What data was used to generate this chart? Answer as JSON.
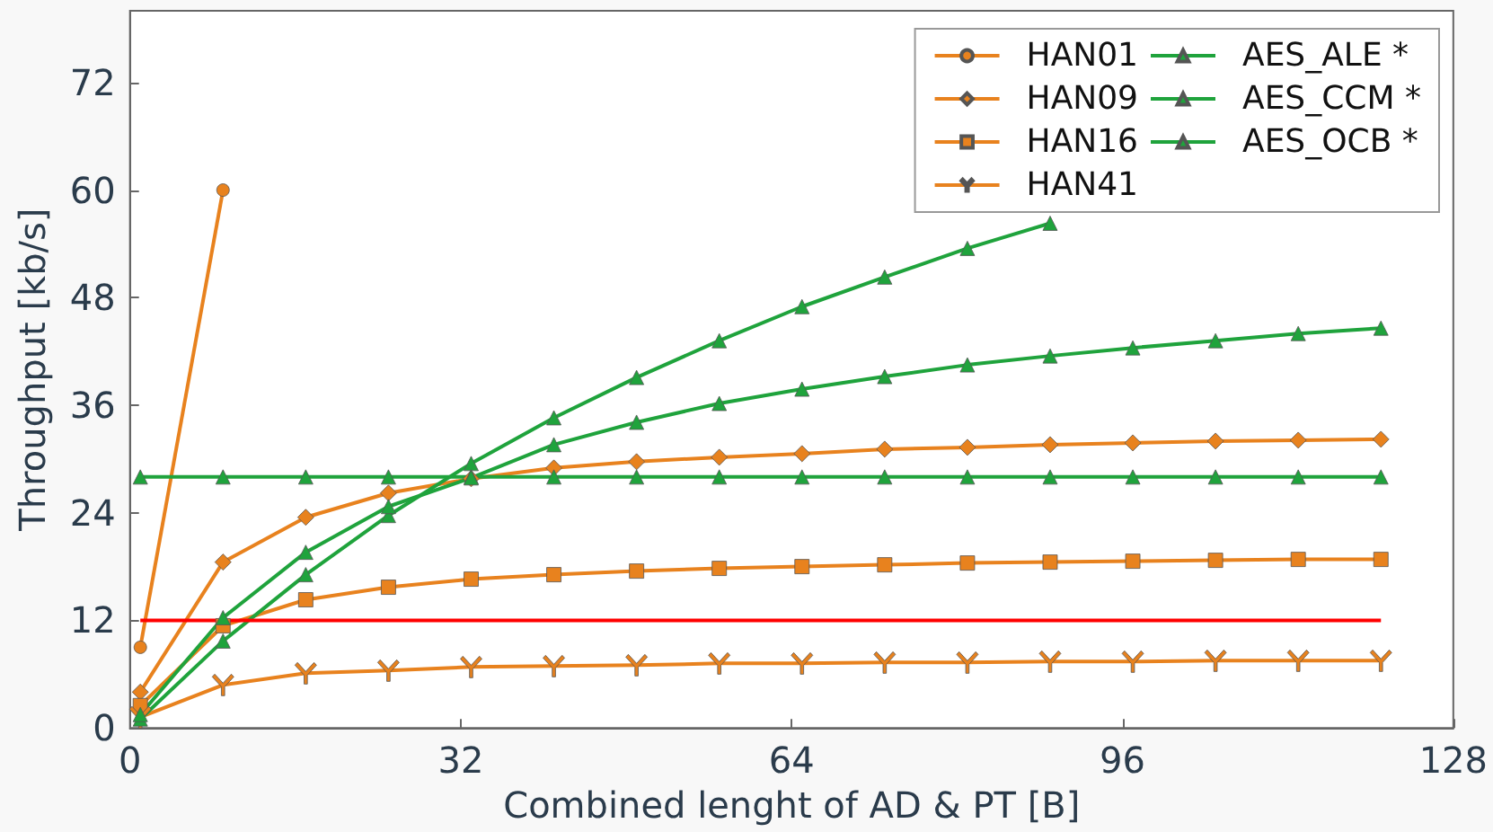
{
  "chart_data": {
    "type": "line",
    "xlabel": "Combined lenght of AD & PT [B]",
    "ylabel": "Throughput [kb/s]",
    "x": [
      1,
      9,
      17,
      25,
      33,
      41,
      49,
      57,
      65,
      73,
      81,
      89,
      97,
      105,
      113,
      121
    ],
    "xlim": [
      0,
      128
    ],
    "xticks": [
      0,
      32,
      64,
      96,
      128
    ],
    "ylim": [
      0,
      80
    ],
    "yticks": [
      0,
      12,
      24,
      36,
      48,
      60,
      72
    ],
    "grid": false,
    "legend": "top right",
    "series": [
      {
        "name": "HAN01",
        "color": "#e8821e",
        "marker": "circle",
        "values": [
          9,
          60,
          null,
          null,
          null,
          null,
          null,
          null,
          null,
          null,
          null,
          null,
          null,
          null,
          null,
          null
        ]
      },
      {
        "name": "HAN09",
        "color": "#e8821e",
        "marker": "diamond",
        "values": [
          4.0,
          18.5,
          23.5,
          26.2,
          27.8,
          29.0,
          29.7,
          30.2,
          30.6,
          31.1,
          31.3,
          31.6,
          31.8,
          32.0,
          32.1,
          32.2
        ]
      },
      {
        "name": "HAN16",
        "color": "#e8821e",
        "marker": "square",
        "values": [
          2.5,
          11.4,
          14.3,
          15.7,
          16.6,
          17.1,
          17.5,
          17.8,
          18.0,
          18.2,
          18.4,
          18.5,
          18.6,
          18.7,
          18.8,
          18.8
        ]
      },
      {
        "name": "HAN41",
        "color": "#e8821e",
        "marker": "cross",
        "values": [
          1.2,
          4.8,
          6.1,
          6.4,
          6.8,
          6.9,
          7.0,
          7.2,
          7.2,
          7.3,
          7.3,
          7.4,
          7.4,
          7.5,
          7.5,
          7.5
        ]
      },
      {
        "name": "AES_ALE *",
        "color": "#1fa33c",
        "marker": "triangle",
        "values": [
          1.0,
          9.7,
          17.1,
          23.7,
          29.5,
          34.6,
          39.1,
          43.2,
          47.0,
          50.3,
          53.5,
          56.3,
          null,
          null,
          null,
          null
        ]
      },
      {
        "name": "AES_CCM *",
        "color": "#1fa33c",
        "marker": "triangle",
        "values": [
          28,
          28,
          28,
          28,
          28,
          28,
          28,
          28,
          28,
          28,
          28,
          28,
          28,
          28,
          28,
          28
        ]
      },
      {
        "name": "AES_OCB *",
        "color": "#1fa33c",
        "marker": "triangle",
        "values": [
          1.5,
          12.3,
          19.6,
          24.7,
          27.9,
          31.6,
          34.1,
          36.2,
          37.8,
          39.2,
          40.5,
          41.5,
          42.4,
          43.2,
          44.0,
          44.6
        ]
      },
      {
        "color": "#ff0000",
        "marker": "none",
        "x": [
          1,
          121
        ],
        "values": [
          12,
          12
        ]
      }
    ]
  }
}
